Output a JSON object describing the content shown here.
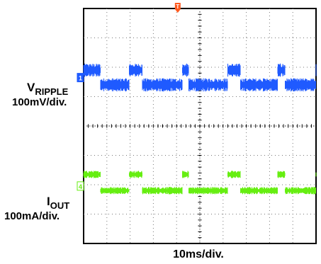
{
  "chart_data": {
    "type": "line",
    "title": "",
    "xlabel": "10ms/div.",
    "ylabel": "",
    "grid": true,
    "x_divisions": 10,
    "y_divisions": 8,
    "x_unit_per_div": "10ms",
    "xlim": [
      0,
      100
    ],
    "trigger_marker": {
      "label": "T",
      "color": "#ff5a1f",
      "x_div": 4.05
    },
    "series": [
      {
        "name": "V_RIPPLE",
        "label_main": "V",
        "label_sub": "RIPPLE",
        "scale": "100mV/div.",
        "channel_marker": "1",
        "color": "#1f5aff",
        "baseline_div": 2.4,
        "high_offset_div": -0.3,
        "low_offset_div": 0.2,
        "noise_div": 0.45,
        "segments_div": [
          0.12,
          0.72,
          1.96,
          2.53,
          4.25,
          4.52,
          6.2,
          6.74,
          8.35,
          8.67,
          10.0
        ]
      },
      {
        "name": "I_OUT",
        "label_main": "I",
        "label_sub": "OUT",
        "scale": "100mA/div.",
        "channel_marker": "4",
        "color": "#66ee11",
        "baseline_div": 5.9,
        "high_offset_div": -0.25,
        "low_offset_div": 0.3,
        "noise_div": 0.25,
        "segments_div": [
          0.12,
          0.72,
          1.96,
          2.53,
          4.25,
          4.52,
          6.2,
          6.74,
          8.35,
          8.67,
          10.0
        ]
      }
    ]
  }
}
